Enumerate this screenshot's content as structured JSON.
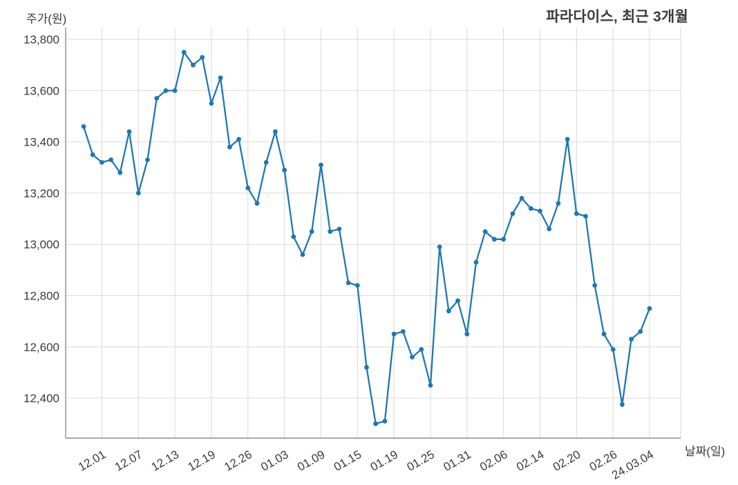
{
  "header": {
    "title": "파라다이스, 최근 3개월"
  },
  "axes": {
    "y_label": "주가(원)",
    "x_label": "날짜(일)"
  },
  "chart_data": {
    "type": "line",
    "title": "파라다이스, 최근 3개월",
    "xlabel": "날짜(일)",
    "ylabel": "주가(원)",
    "series_name": "주가",
    "values": [
      13460,
      13350,
      13320,
      13330,
      13280,
      13440,
      13200,
      13330,
      13570,
      13600,
      13600,
      13750,
      13700,
      13730,
      13550,
      13650,
      13380,
      13410,
      13220,
      13160,
      13320,
      13440,
      13290,
      13030,
      12960,
      13050,
      13310,
      13050,
      13060,
      12850,
      12840,
      12520,
      12300,
      12310,
      12650,
      12660,
      12560,
      12590,
      12450,
      12990,
      12740,
      12780,
      12650,
      12930,
      13050,
      13020,
      13020,
      13120,
      13180,
      13140,
      13130,
      13060,
      13160,
      13410,
      13120,
      13110,
      12840,
      12650,
      12590,
      12375,
      12630,
      12660,
      12750
    ],
    "x_tick_labels": [
      "12.01",
      "12.07",
      "12.13",
      "12.19",
      "12.26",
      "01.03",
      "01.09",
      "01.15",
      "01.19",
      "01.25",
      "01.31",
      "02.06",
      "02.14",
      "02.20",
      "02.26",
      "24.03.04"
    ],
    "x_tick_indices": [
      2,
      6,
      10,
      14,
      18,
      22,
      26,
      30,
      34,
      38,
      42,
      46,
      50,
      54,
      58,
      62
    ],
    "y_ticks": [
      12400,
      12600,
      12800,
      13000,
      13200,
      13400,
      13600,
      13800
    ],
    "ylim": [
      12244,
      13846
    ],
    "grid": true,
    "legend_position": "none",
    "line_color": "#1f77b4",
    "marker_color": "#1f77b4",
    "grid_color": "#d9d9d9",
    "axis_color": "#8c8c8c",
    "tick_text_color": "#3a3a3a"
  }
}
